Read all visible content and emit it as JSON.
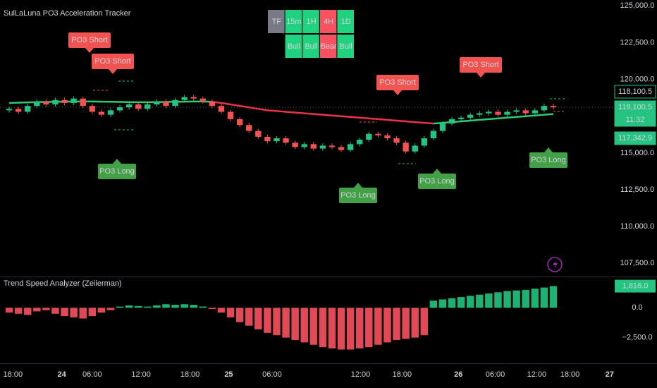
{
  "chart_data": [
    {
      "type": "candlestick",
      "title": "SulLaLuna PO3 Acceleration Tracker",
      "up_color": "#26c281",
      "down_color": "#f05350",
      "open": [
        117900,
        118000,
        117800,
        118200,
        118500,
        118300,
        118600,
        118400,
        118700,
        118200,
        117800,
        117600,
        117900,
        118100,
        118300,
        118000,
        118300,
        118500,
        118200,
        118600,
        118800,
        118700,
        118500,
        118200,
        117800,
        117300,
        116900,
        116500,
        116100,
        115800,
        116000,
        115700,
        115400,
        115600,
        115300,
        115500,
        115400,
        115200,
        115600,
        115900,
        116300,
        116200,
        116000,
        115700,
        115100,
        115500,
        116000,
        116500,
        117000,
        117300,
        117400,
        117600,
        117700,
        117800,
        117600,
        117800,
        117900,
        117700,
        117900,
        118200
      ],
      "high": [
        118150,
        118150,
        118350,
        118650,
        118650,
        118750,
        118750,
        118850,
        118850,
        118350,
        117950,
        118050,
        118250,
        118450,
        118450,
        118450,
        118650,
        118650,
        118750,
        118950,
        118950,
        118850,
        118650,
        118350,
        117950,
        117450,
        117050,
        116650,
        116250,
        116150,
        116150,
        115850,
        115750,
        115750,
        115650,
        115650,
        115550,
        115750,
        116050,
        116450,
        116450,
        116350,
        116150,
        115850,
        115650,
        116150,
        116650,
        117150,
        117450,
        117550,
        117750,
        117850,
        117950,
        117950,
        117950,
        118050,
        118050,
        118050,
        118350,
        118350
      ],
      "low": [
        117750,
        117650,
        117650,
        118050,
        118150,
        118150,
        118250,
        118250,
        118050,
        117650,
        117450,
        117450,
        117750,
        117950,
        117850,
        117850,
        118150,
        118050,
        118050,
        118450,
        118550,
        118350,
        118050,
        117650,
        117150,
        116750,
        116350,
        115950,
        115650,
        115650,
        115550,
        115250,
        115250,
        115150,
        115150,
        115250,
        115050,
        115050,
        115450,
        115750,
        116050,
        115850,
        115550,
        114950,
        114950,
        115350,
        115850,
        116350,
        116850,
        117150,
        117250,
        117450,
        117550,
        117450,
        117450,
        117650,
        117550,
        117550,
        117750,
        117950
      ],
      "close": [
        118000,
        117800,
        118200,
        118500,
        118300,
        118600,
        118400,
        118700,
        118200,
        117800,
        117600,
        117900,
        118100,
        118300,
        118000,
        118300,
        118500,
        118200,
        118600,
        118800,
        118700,
        118500,
        118200,
        117800,
        117300,
        116900,
        116500,
        116100,
        115800,
        116000,
        115700,
        115400,
        115600,
        115300,
        115500,
        115400,
        115200,
        115600,
        115900,
        116300,
        116200,
        116000,
        115700,
        115100,
        115500,
        116000,
        116500,
        117000,
        117300,
        117400,
        117600,
        117700,
        117800,
        117600,
        117800,
        117900,
        117700,
        117900,
        118200,
        118100
      ],
      "lines": [
        {
          "color": "#2ecc71",
          "values": [
            118400,
            118420,
            118440,
            118460,
            118470,
            118480,
            118490,
            118500,
            118500,
            118500,
            118490,
            118480,
            118470,
            118460,
            118450,
            118450,
            118460,
            118470,
            118480,
            118490,
            118500,
            118500,
            118480,
            null,
            null,
            null,
            null,
            null,
            null,
            null,
            null,
            null,
            null,
            null,
            null,
            null,
            null,
            null,
            null,
            null,
            null,
            null,
            null,
            null,
            null,
            null,
            117000,
            117050,
            117100,
            117150,
            117200,
            117250,
            117300,
            117350,
            117400,
            117450,
            117500,
            117550,
            117600,
            117650
          ]
        },
        {
          "color": "#e8334a",
          "values": [
            null,
            null,
            null,
            null,
            null,
            null,
            null,
            null,
            null,
            null,
            null,
            null,
            null,
            null,
            null,
            null,
            null,
            null,
            null,
            null,
            null,
            null,
            118480,
            118400,
            118300,
            118200,
            118100,
            118000,
            117900,
            117850,
            117800,
            117750,
            117700,
            117650,
            117600,
            117550,
            117500,
            117450,
            117400,
            117350,
            117300,
            117250,
            117200,
            117150,
            117100,
            117050,
            117000,
            null,
            null,
            null,
            null,
            null,
            null,
            null,
            null,
            null,
            null,
            null,
            null,
            null
          ]
        }
      ],
      "xlim": [
        -1,
        65.5
      ],
      "xticks": [
        {
          "value": 0.4,
          "label": "18:00"
        },
        {
          "value": 5.7,
          "label": "24"
        },
        {
          "value": 9.0,
          "label": "06:00"
        },
        {
          "value": 14.3,
          "label": "12:00"
        },
        {
          "value": 19.6,
          "label": "18:00"
        },
        {
          "value": 23.8,
          "label": "25"
        },
        {
          "value": 28.5,
          "label": "06:00"
        },
        {
          "value": 38.1,
          "label": "12:00"
        },
        {
          "value": 42.6,
          "label": "18:00"
        },
        {
          "value": 48.7,
          "label": "26"
        },
        {
          "value": 52.7,
          "label": "06:00"
        },
        {
          "value": 57.2,
          "label": "12:00"
        },
        {
          "value": 60.8,
          "label": "18:00"
        },
        {
          "value": 65.1,
          "label": "27"
        }
      ],
      "ylim": [
        106600,
        125400
      ],
      "yticks": [
        {
          "value": 107500,
          "label": "107,500.0"
        },
        {
          "value": 110000,
          "label": "110,000.0"
        },
        {
          "value": 112500,
          "label": "112,500.0"
        },
        {
          "value": 115000,
          "label": "115,000.0"
        },
        {
          "value": 117500,
          "label": "117,500.0"
        },
        {
          "value": 120000,
          "label": "120,000.0"
        },
        {
          "value": 122500,
          "label": "122,500.0"
        },
        {
          "value": 125000,
          "label": "125,000.0"
        }
      ],
      "price_markers": [
        "118,100.5",
        "118,100.5",
        "11:32",
        "117,342.9"
      ],
      "annotations": {
        "short": [
          "PO3 Short",
          "PO3 Short",
          "PO3 Short",
          "PO3 Short"
        ],
        "long": [
          "PO3 Long",
          "PO3 Long",
          "PO3 Long",
          "PO3 Long"
        ]
      },
      "tf_table": {
        "header": [
          "TF",
          "15m",
          "1H",
          "4H",
          "1D"
        ],
        "header_colors": [
          "#787b86",
          "#22d17f",
          "#22d17f",
          "#f7525f",
          "#22d17f"
        ],
        "row": [
          "Bull",
          "Bull",
          "Bear",
          "Bull"
        ],
        "row_colors": [
          "#22d17f",
          "#22d17f",
          "#f7525f",
          "#22d17f"
        ]
      }
    },
    {
      "type": "bar",
      "title": "Trend Speed Analyzer (Zeiierman)",
      "up_color": "#22c47f",
      "down_color": "#f7525f",
      "values": [
        -400,
        -500,
        -600,
        -300,
        -200,
        -500,
        -700,
        -800,
        -900,
        -700,
        -400,
        -200,
        100,
        200,
        150,
        100,
        200,
        300,
        250,
        300,
        250,
        100,
        -100,
        -400,
        -800,
        -1200,
        -1500,
        -1800,
        -2100,
        -2300,
        -2500,
        -2700,
        -2900,
        -3100,
        -3300,
        -3400,
        -3500,
        -3500,
        -3400,
        -3300,
        -3100,
        -2900,
        -2700,
        -2600,
        -2500,
        -2300,
        600,
        700,
        800,
        900,
        1000,
        1100,
        1200,
        1300,
        1400,
        1450,
        1500,
        1600,
        1700,
        1816
      ],
      "value_labels": [
        null,
        null,
        null,
        null,
        null,
        null,
        null,
        null,
        null,
        null,
        null,
        null,
        null,
        null,
        null,
        null,
        null,
        null,
        null,
        null,
        null,
        null,
        null,
        null,
        null,
        null,
        null,
        null,
        null,
        null,
        null,
        null,
        null,
        null,
        null,
        null,
        null,
        null,
        null,
        null,
        null,
        null,
        null,
        null,
        null,
        null,
        null,
        null,
        null,
        null,
        null,
        null,
        null,
        null,
        null,
        null,
        null,
        null,
        null,
        "1,816.0"
      ],
      "ylim": [
        -4535,
        2442
      ],
      "yticks": [
        {
          "value": 0,
          "label": "0.0"
        },
        {
          "value": -2500,
          "label": "−2,500.0"
        }
      ]
    }
  ]
}
